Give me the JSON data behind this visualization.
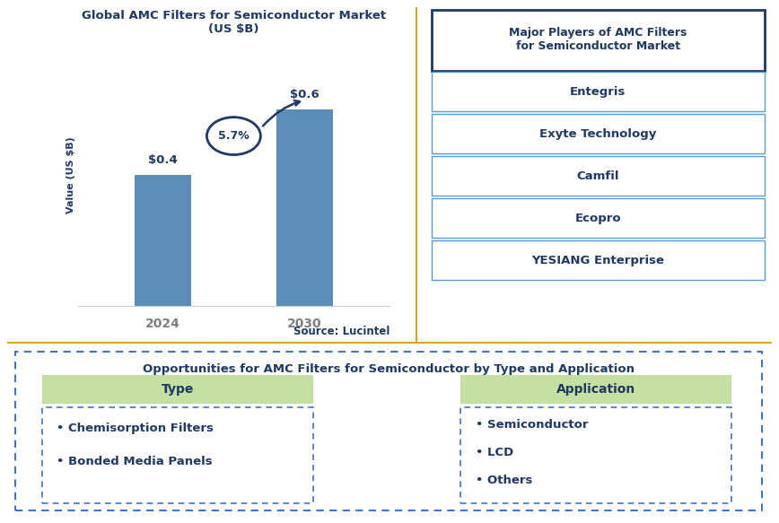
{
  "title_left": "Global AMC Filters for Semiconductor Market\n(US $B)",
  "ylabel": "Value (US $B)",
  "categories": [
    "2024",
    "2030"
  ],
  "values": [
    0.4,
    0.6
  ],
  "bar_color": "#5B8DB8",
  "bar_labels": [
    "$0.4",
    "$0.6"
  ],
  "cagr_text": "5.7%",
  "source_text": "Source: Lucintel",
  "right_title": "Major Players of AMC Filters\nfor Semiconductor Market",
  "players": [
    "Entegris",
    "Exyte Technology",
    "Camfil",
    "Ecopro",
    "YESIANG Enterprise"
  ],
  "bottom_title": "Opportunities for AMC Filters for Semiconductor by Type and Application",
  "type_header": "Type",
  "type_items": [
    "• Chemisorption Filters",
    "• Bonded Media Panels"
  ],
  "app_header": "Application",
  "app_items": [
    "• Semiconductor",
    "• LCD",
    "• Others"
  ],
  "navy": "#1F3864",
  "gold_line": "#DAA520",
  "light_green": "#C6E0A4",
  "box_border_right": "#1F3864",
  "box_border_player": "#5B9BD5",
  "box_border_dash": "#4472C4",
  "bar_xlabel_color": "#7F7F7F"
}
